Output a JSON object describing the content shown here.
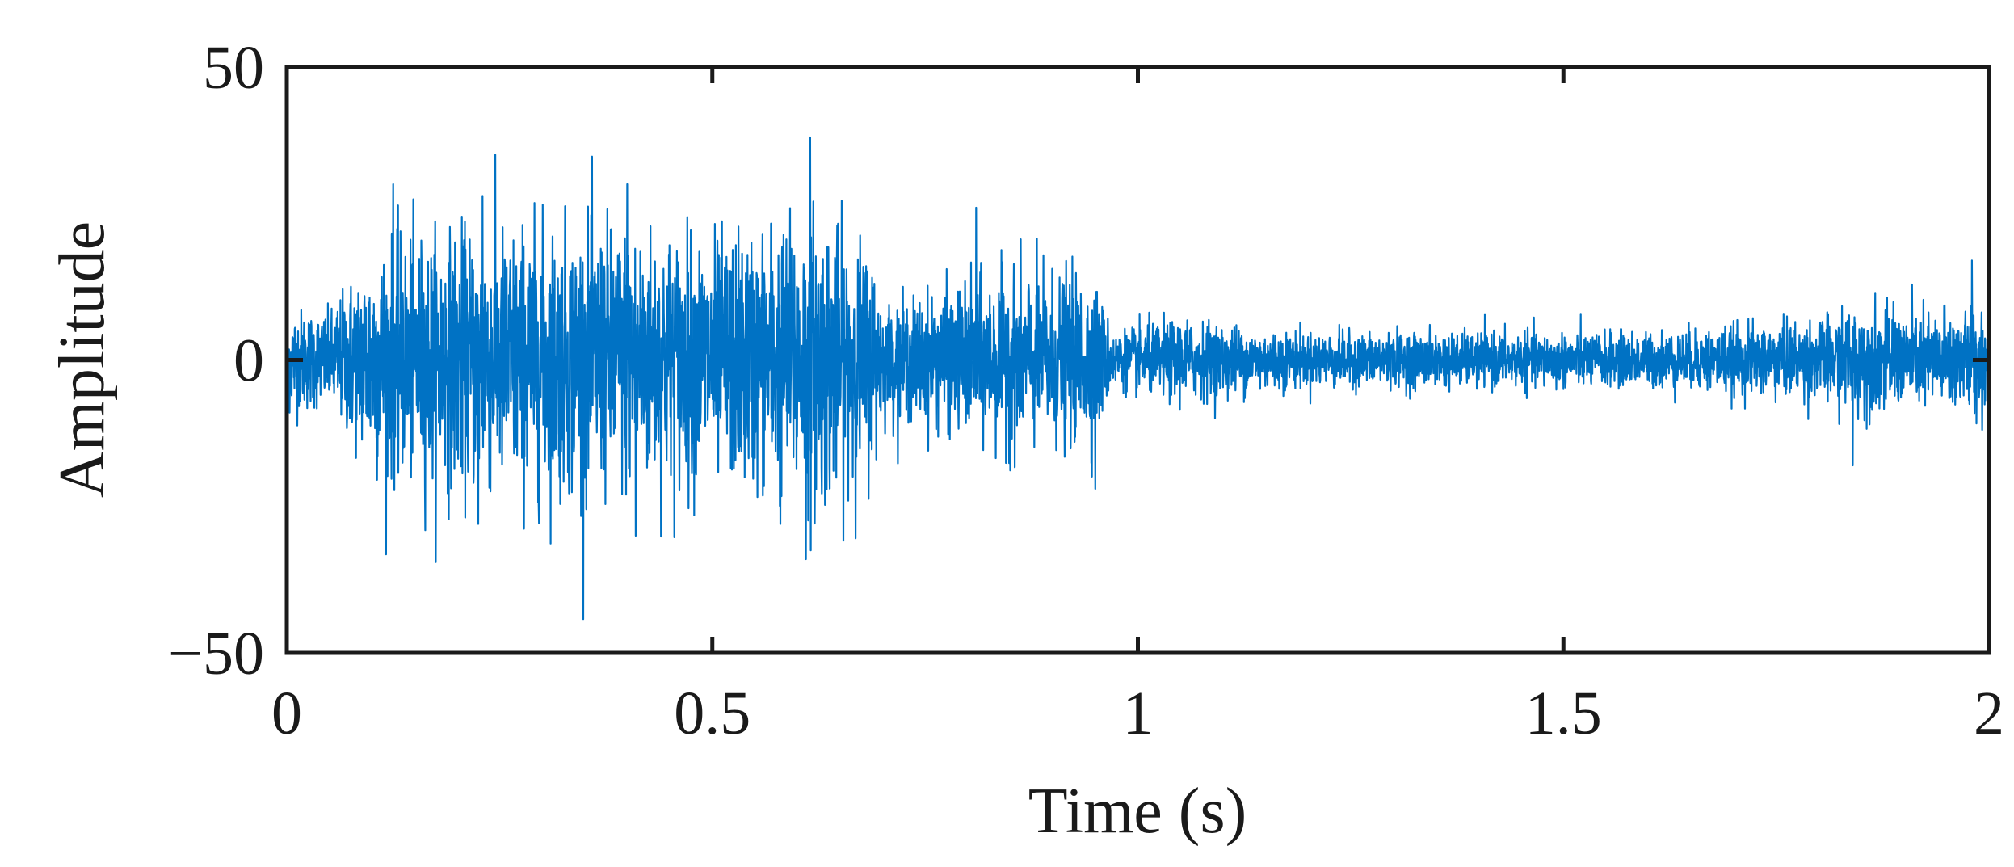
{
  "chart_data": {
    "type": "line",
    "title": "",
    "xlabel": "Time (s)",
    "ylabel": "Amplitude",
    "xlim": [
      0,
      2
    ],
    "ylim": [
      -50,
      50
    ],
    "grid": false,
    "x_ticks": [
      0,
      0.5,
      1,
      1.5,
      2
    ],
    "x_tick_labels": [
      "0",
      "0.5",
      "1",
      "1.5",
      "2"
    ],
    "y_ticks": [
      -50,
      0,
      50
    ],
    "y_tick_labels": [
      "−50",
      "0",
      "50"
    ],
    "series": [
      {
        "color": "#0072c4",
        "style": "dense oscillating signal",
        "envelope": {
          "t": [
            0.0,
            0.05,
            0.1,
            0.2,
            0.3,
            0.4,
            0.5,
            0.55,
            0.6,
            0.62,
            0.65,
            0.69,
            0.7,
            0.8,
            0.85,
            0.95,
            0.97,
            1.0,
            1.05,
            1.2,
            1.4,
            1.6,
            1.8,
            1.85,
            1.9,
            2.0
          ],
          "amp": [
            8,
            7,
            17,
            19,
            20,
            20,
            18,
            19,
            21,
            23,
            19,
            16,
            8,
            11,
            13,
            12,
            4,
            5,
            6,
            4,
            4,
            4,
            6,
            8,
            7,
            8
          ]
        },
        "peaks": [
          {
            "t": 0.125,
            "y": 30
          },
          {
            "t": 0.23,
            "y": 28
          },
          {
            "t": 0.4,
            "y": 30
          },
          {
            "t": 0.58,
            "y": 28
          },
          {
            "t": 0.615,
            "y": 38
          },
          {
            "t": 0.81,
            "y": 26
          },
          {
            "t": 0.95,
            "y": 23
          },
          {
            "t": 0.41,
            "y": -30
          },
          {
            "t": 0.225,
            "y": -28
          },
          {
            "t": 0.61,
            "y": -34
          },
          {
            "t": 0.58,
            "y": -28
          },
          {
            "t": 0.95,
            "y": -22
          },
          {
            "t": 1.84,
            "y": -18
          },
          {
            "t": 1.98,
            "y": 17
          }
        ]
      }
    ]
  }
}
